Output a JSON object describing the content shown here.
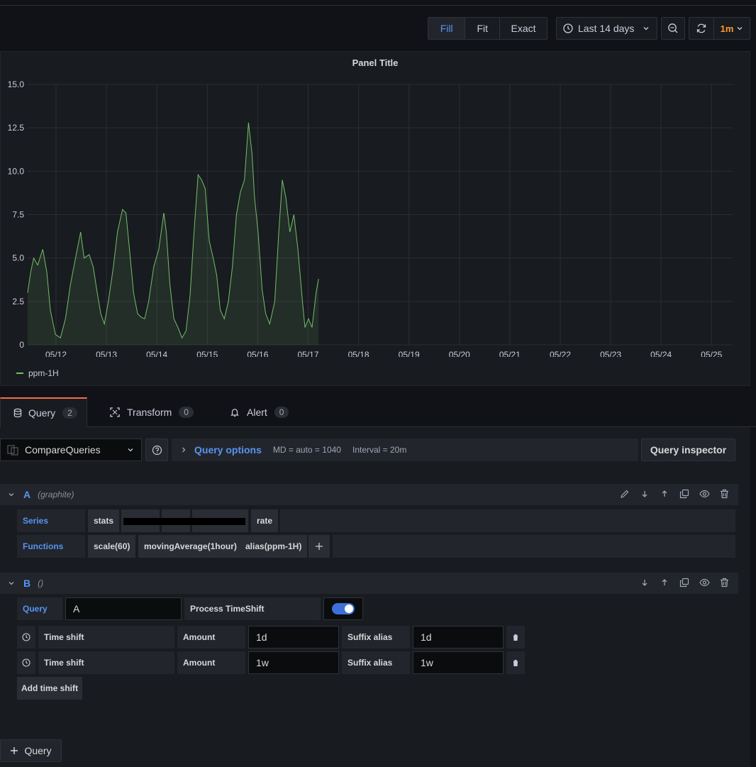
{
  "toolbar": {
    "fill": "Fill",
    "fit": "Fit",
    "exact": "Exact",
    "time_range": "Last 14 days",
    "refresh_interval": "1m"
  },
  "panel": {
    "title": "Panel Title",
    "legend": "ppm-1H"
  },
  "chart_data": {
    "type": "area",
    "x_ticks": [
      "05/12",
      "05/13",
      "05/14",
      "05/15",
      "05/16",
      "05/17",
      "05/18",
      "05/19",
      "05/20",
      "05/21",
      "05/22",
      "05/23",
      "05/24",
      "05/25"
    ],
    "y_ticks": [
      "15.0",
      "12.5",
      "10.0",
      "7.5",
      "5.0",
      "2.5",
      "0"
    ],
    "ylim": [
      0,
      15
    ],
    "series": [
      {
        "name": "ppm-1H",
        "color": "#73bf69",
        "values": [
          [
            0.0,
            3.0
          ],
          [
            0.06,
            4.2
          ],
          [
            0.12,
            5.0
          ],
          [
            0.2,
            4.6
          ],
          [
            0.3,
            5.5
          ],
          [
            0.38,
            4.2
          ],
          [
            0.45,
            2.0
          ],
          [
            0.55,
            0.6
          ],
          [
            0.65,
            0.4
          ],
          [
            0.75,
            1.5
          ],
          [
            0.85,
            3.5
          ],
          [
            0.95,
            5.0
          ],
          [
            1.05,
            6.5
          ],
          [
            1.12,
            5.0
          ],
          [
            1.22,
            5.2
          ],
          [
            1.3,
            4.5
          ],
          [
            1.38,
            3.0
          ],
          [
            1.45,
            1.8
          ],
          [
            1.52,
            1.2
          ],
          [
            1.6,
            2.5
          ],
          [
            1.7,
            4.5
          ],
          [
            1.78,
            6.5
          ],
          [
            1.88,
            7.8
          ],
          [
            1.95,
            7.6
          ],
          [
            2.02,
            5.5
          ],
          [
            2.1,
            3.0
          ],
          [
            2.18,
            1.8
          ],
          [
            2.25,
            1.6
          ],
          [
            2.32,
            1.5
          ],
          [
            2.4,
            2.5
          ],
          [
            2.5,
            4.5
          ],
          [
            2.6,
            5.5
          ],
          [
            2.7,
            7.6
          ],
          [
            2.75,
            6.5
          ],
          [
            2.82,
            3.5
          ],
          [
            2.9,
            1.5
          ],
          [
            2.98,
            1.0
          ],
          [
            3.06,
            0.4
          ],
          [
            3.14,
            0.8
          ],
          [
            3.22,
            2.8
          ],
          [
            3.3,
            6.5
          ],
          [
            3.38,
            9.8
          ],
          [
            3.45,
            9.5
          ],
          [
            3.52,
            9.0
          ],
          [
            3.6,
            6.0
          ],
          [
            3.68,
            5.0
          ],
          [
            3.75,
            4.0
          ],
          [
            3.82,
            2.0
          ],
          [
            3.9,
            1.5
          ],
          [
            3.98,
            2.5
          ],
          [
            4.06,
            4.5
          ],
          [
            4.14,
            7.5
          ],
          [
            4.22,
            8.8
          ],
          [
            4.3,
            9.5
          ],
          [
            4.38,
            12.8
          ],
          [
            4.45,
            11.0
          ],
          [
            4.5,
            8.5
          ],
          [
            4.57,
            6.5
          ],
          [
            4.65,
            3.2
          ],
          [
            4.72,
            1.8
          ],
          [
            4.8,
            1.2
          ],
          [
            4.9,
            2.5
          ],
          [
            4.98,
            6.5
          ],
          [
            5.05,
            9.5
          ],
          [
            5.12,
            8.5
          ],
          [
            5.2,
            6.5
          ],
          [
            5.28,
            7.5
          ],
          [
            5.36,
            5.5
          ],
          [
            5.45,
            2.5
          ],
          [
            5.5,
            1.0
          ],
          [
            5.57,
            1.5
          ],
          [
            5.64,
            1.0
          ],
          [
            5.72,
            3.0
          ],
          [
            5.77,
            3.8
          ]
        ]
      }
    ]
  },
  "tabs": [
    {
      "label": "Query",
      "count": "2"
    },
    {
      "label": "Transform",
      "count": "0"
    },
    {
      "label": "Alert",
      "count": "0"
    }
  ],
  "editor": {
    "datasource": "CompareQueries",
    "query_options": "Query options",
    "md": "MD = auto = 1040",
    "interval": "Interval = 20m",
    "inspector": "Query inspector",
    "add_query": "Query"
  },
  "queryA": {
    "letter": "A",
    "datasource": "(graphite)",
    "series_label": "Series",
    "series_segments": [
      "stats",
      "rate"
    ],
    "functions_label": "Functions",
    "functions": [
      "scale(60)",
      "movingAverage(1hour)",
      "alias(ppm-1H)"
    ]
  },
  "queryB": {
    "letter": "B",
    "datasource": "()",
    "query_label": "Query",
    "query_value": "A",
    "process_label": "Process TimeShift",
    "shifts": [
      {
        "label": "Time shift",
        "amount_label": "Amount",
        "amount": "1d",
        "suffix_label": "Suffix alias",
        "suffix": "1d"
      },
      {
        "label": "Time shift",
        "amount_label": "Amount",
        "amount": "1w",
        "suffix_label": "Suffix alias",
        "suffix": "1w"
      }
    ],
    "add_shift": "Add time shift"
  },
  "icons": {
    "clock": "clock-icon",
    "zoom_out": "zoom-out-icon",
    "refresh": "refresh-icon",
    "help": "help-icon",
    "database": "database-icon"
  }
}
